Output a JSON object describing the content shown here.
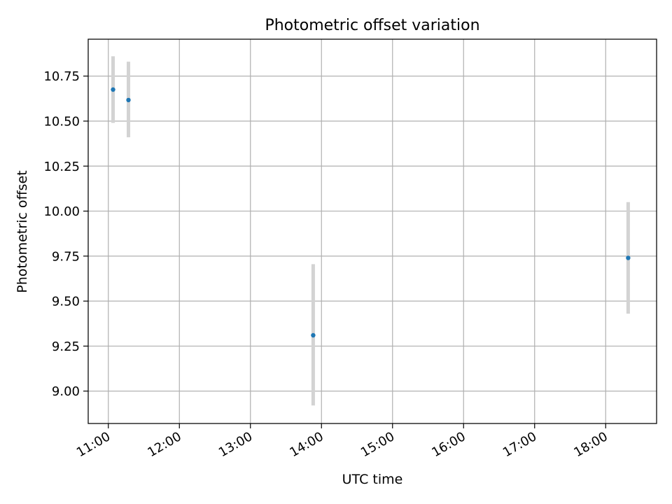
{
  "chart_data": {
    "type": "scatter",
    "title": "Photometric offset variation",
    "xlabel": "UTC time",
    "ylabel": "Photometric offset",
    "x_ticks": [
      "11:00",
      "12:00",
      "13:00",
      "14:00",
      "15:00",
      "16:00",
      "17:00",
      "18:00"
    ],
    "x_range": [
      "10:43",
      "18:43"
    ],
    "y_ticks": [
      "9.00",
      "9.25",
      "9.50",
      "9.75",
      "10.00",
      "10.25",
      "10.50",
      "10.75"
    ],
    "ylim": [
      8.82,
      10.955
    ],
    "grid": true,
    "series": [
      {
        "x": [
          "11:04",
          "11:17",
          "13:53",
          "18:19"
        ],
        "y": [
          10.675,
          10.617,
          9.31,
          9.74
        ],
        "error_low": [
          10.49,
          10.41,
          8.92,
          9.43
        ],
        "error_high": [
          10.86,
          10.83,
          9.705,
          10.05
        ]
      }
    ],
    "colors": {
      "marker": "#1f77b4",
      "errorbar": "#d3d3d3",
      "grid": "#b0b0b0"
    }
  }
}
